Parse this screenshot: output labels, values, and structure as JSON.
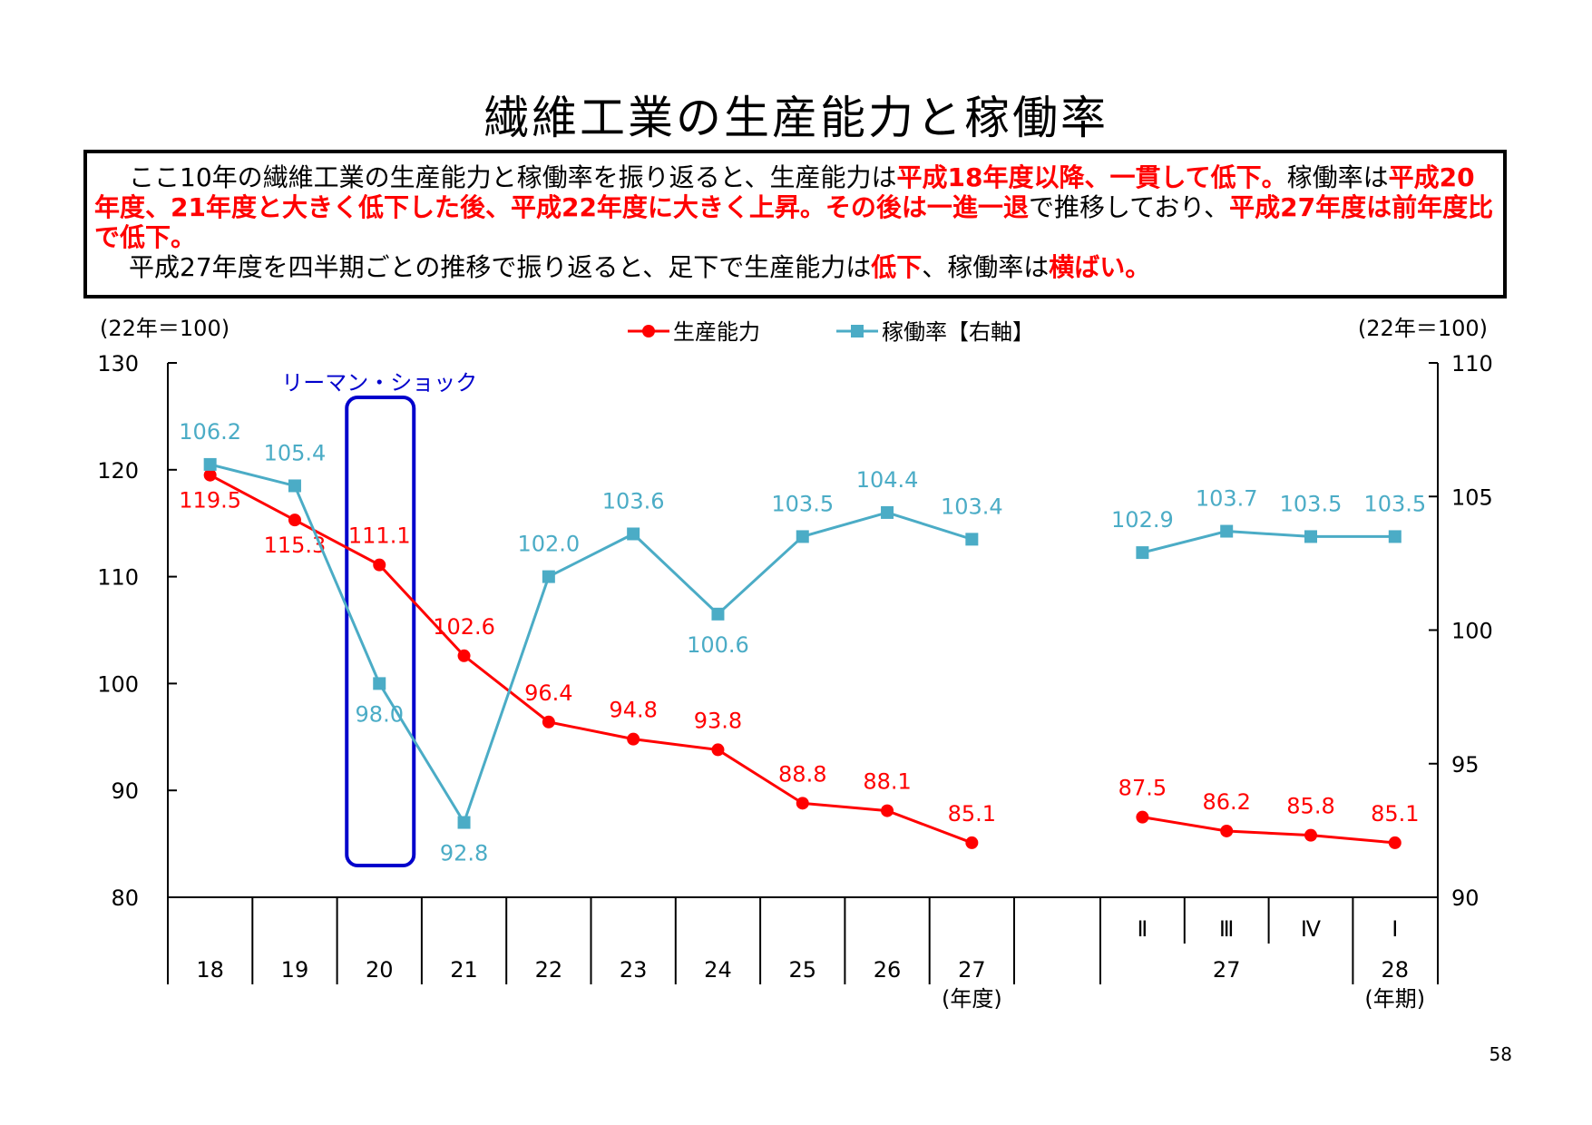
{
  "title": "繊維工業の生産能力と稼働率",
  "summary": {
    "paragraphs": [
      [
        {
          "text": "ここ10年の繊維工業の生産能力と稼働率を振り返ると、生産能力は",
          "hl": false
        },
        {
          "text": "平成18年度以降、一貫して低下。",
          "hl": true
        },
        {
          "text": "稼働率は",
          "hl": false
        },
        {
          "text": "平成20年度、21年度と大きく低下した後、平成22年度に大きく上昇。その後は一進一退",
          "hl": true
        },
        {
          "text": "で推移しており、",
          "hl": false
        },
        {
          "text": "平成27年度は前年度比で低下。",
          "hl": true
        }
      ],
      [
        {
          "text": "平成27年度を四半期ごとの推移で振り返ると、足下で生産能力は",
          "hl": false
        },
        {
          "text": "低下",
          "hl": true
        },
        {
          "text": "、稼働率は",
          "hl": false
        },
        {
          "text": "横ばい。",
          "hl": true
        }
      ]
    ]
  },
  "chart_data": {
    "type": "line",
    "left_axis_unit": "(22年＝100)",
    "right_axis_unit": "(22年＝100)",
    "left_axis": {
      "min": 80,
      "max": 130,
      "ticks": [
        "80",
        "90",
        "100",
        "110",
        "120",
        "130"
      ]
    },
    "right_axis": {
      "min": 90,
      "max": 110,
      "ticks": [
        "90",
        "95",
        "100",
        "105",
        "110"
      ]
    },
    "annual_categories": [
      "18",
      "19",
      "20",
      "21",
      "22",
      "23",
      "24",
      "25",
      "26",
      "27"
    ],
    "annual_axis_suffix": "(年度)",
    "quarter_labels": [
      "Ⅱ",
      "Ⅲ",
      "Ⅳ",
      "Ⅰ"
    ],
    "quarter_years": [
      "27",
      "28"
    ],
    "quarter_axis_suffix": "(年期)",
    "series": [
      {
        "name": "生産能力",
        "axis": "left",
        "color": "#ff0000",
        "marker": "circle",
        "annual": [
          119.5,
          115.3,
          111.1,
          102.6,
          96.4,
          94.8,
          93.8,
          88.8,
          88.1,
          85.1
        ],
        "annual_labels": [
          "119.5",
          "115.3",
          "111.1",
          "102.6",
          "96.4",
          "94.8",
          "93.8",
          "88.8",
          "88.1",
          "85.1"
        ],
        "quarterly": [
          87.5,
          86.2,
          85.8,
          85.1
        ],
        "quarterly_labels": [
          "87.5",
          "86.2",
          "85.8",
          "85.1"
        ]
      },
      {
        "name": "稼働率【右軸】",
        "axis": "right",
        "color": "#4bacc6",
        "marker": "square",
        "annual": [
          106.2,
          105.4,
          98.0,
          92.8,
          102.0,
          103.6,
          100.6,
          103.5,
          104.4,
          103.4
        ],
        "annual_labels": [
          "106.2",
          "105.4",
          "98.0",
          "92.8",
          "102.0",
          "103.6",
          "100.6",
          "103.5",
          "104.4",
          "103.4"
        ],
        "quarterly": [
          102.9,
          103.7,
          103.5,
          103.5
        ],
        "quarterly_labels": [
          "102.9",
          "103.7",
          "103.5",
          "103.5"
        ]
      }
    ],
    "annotation": {
      "text": "リーマン・ショック",
      "color": "#0000cc",
      "category": "20"
    }
  },
  "page_number": "58"
}
